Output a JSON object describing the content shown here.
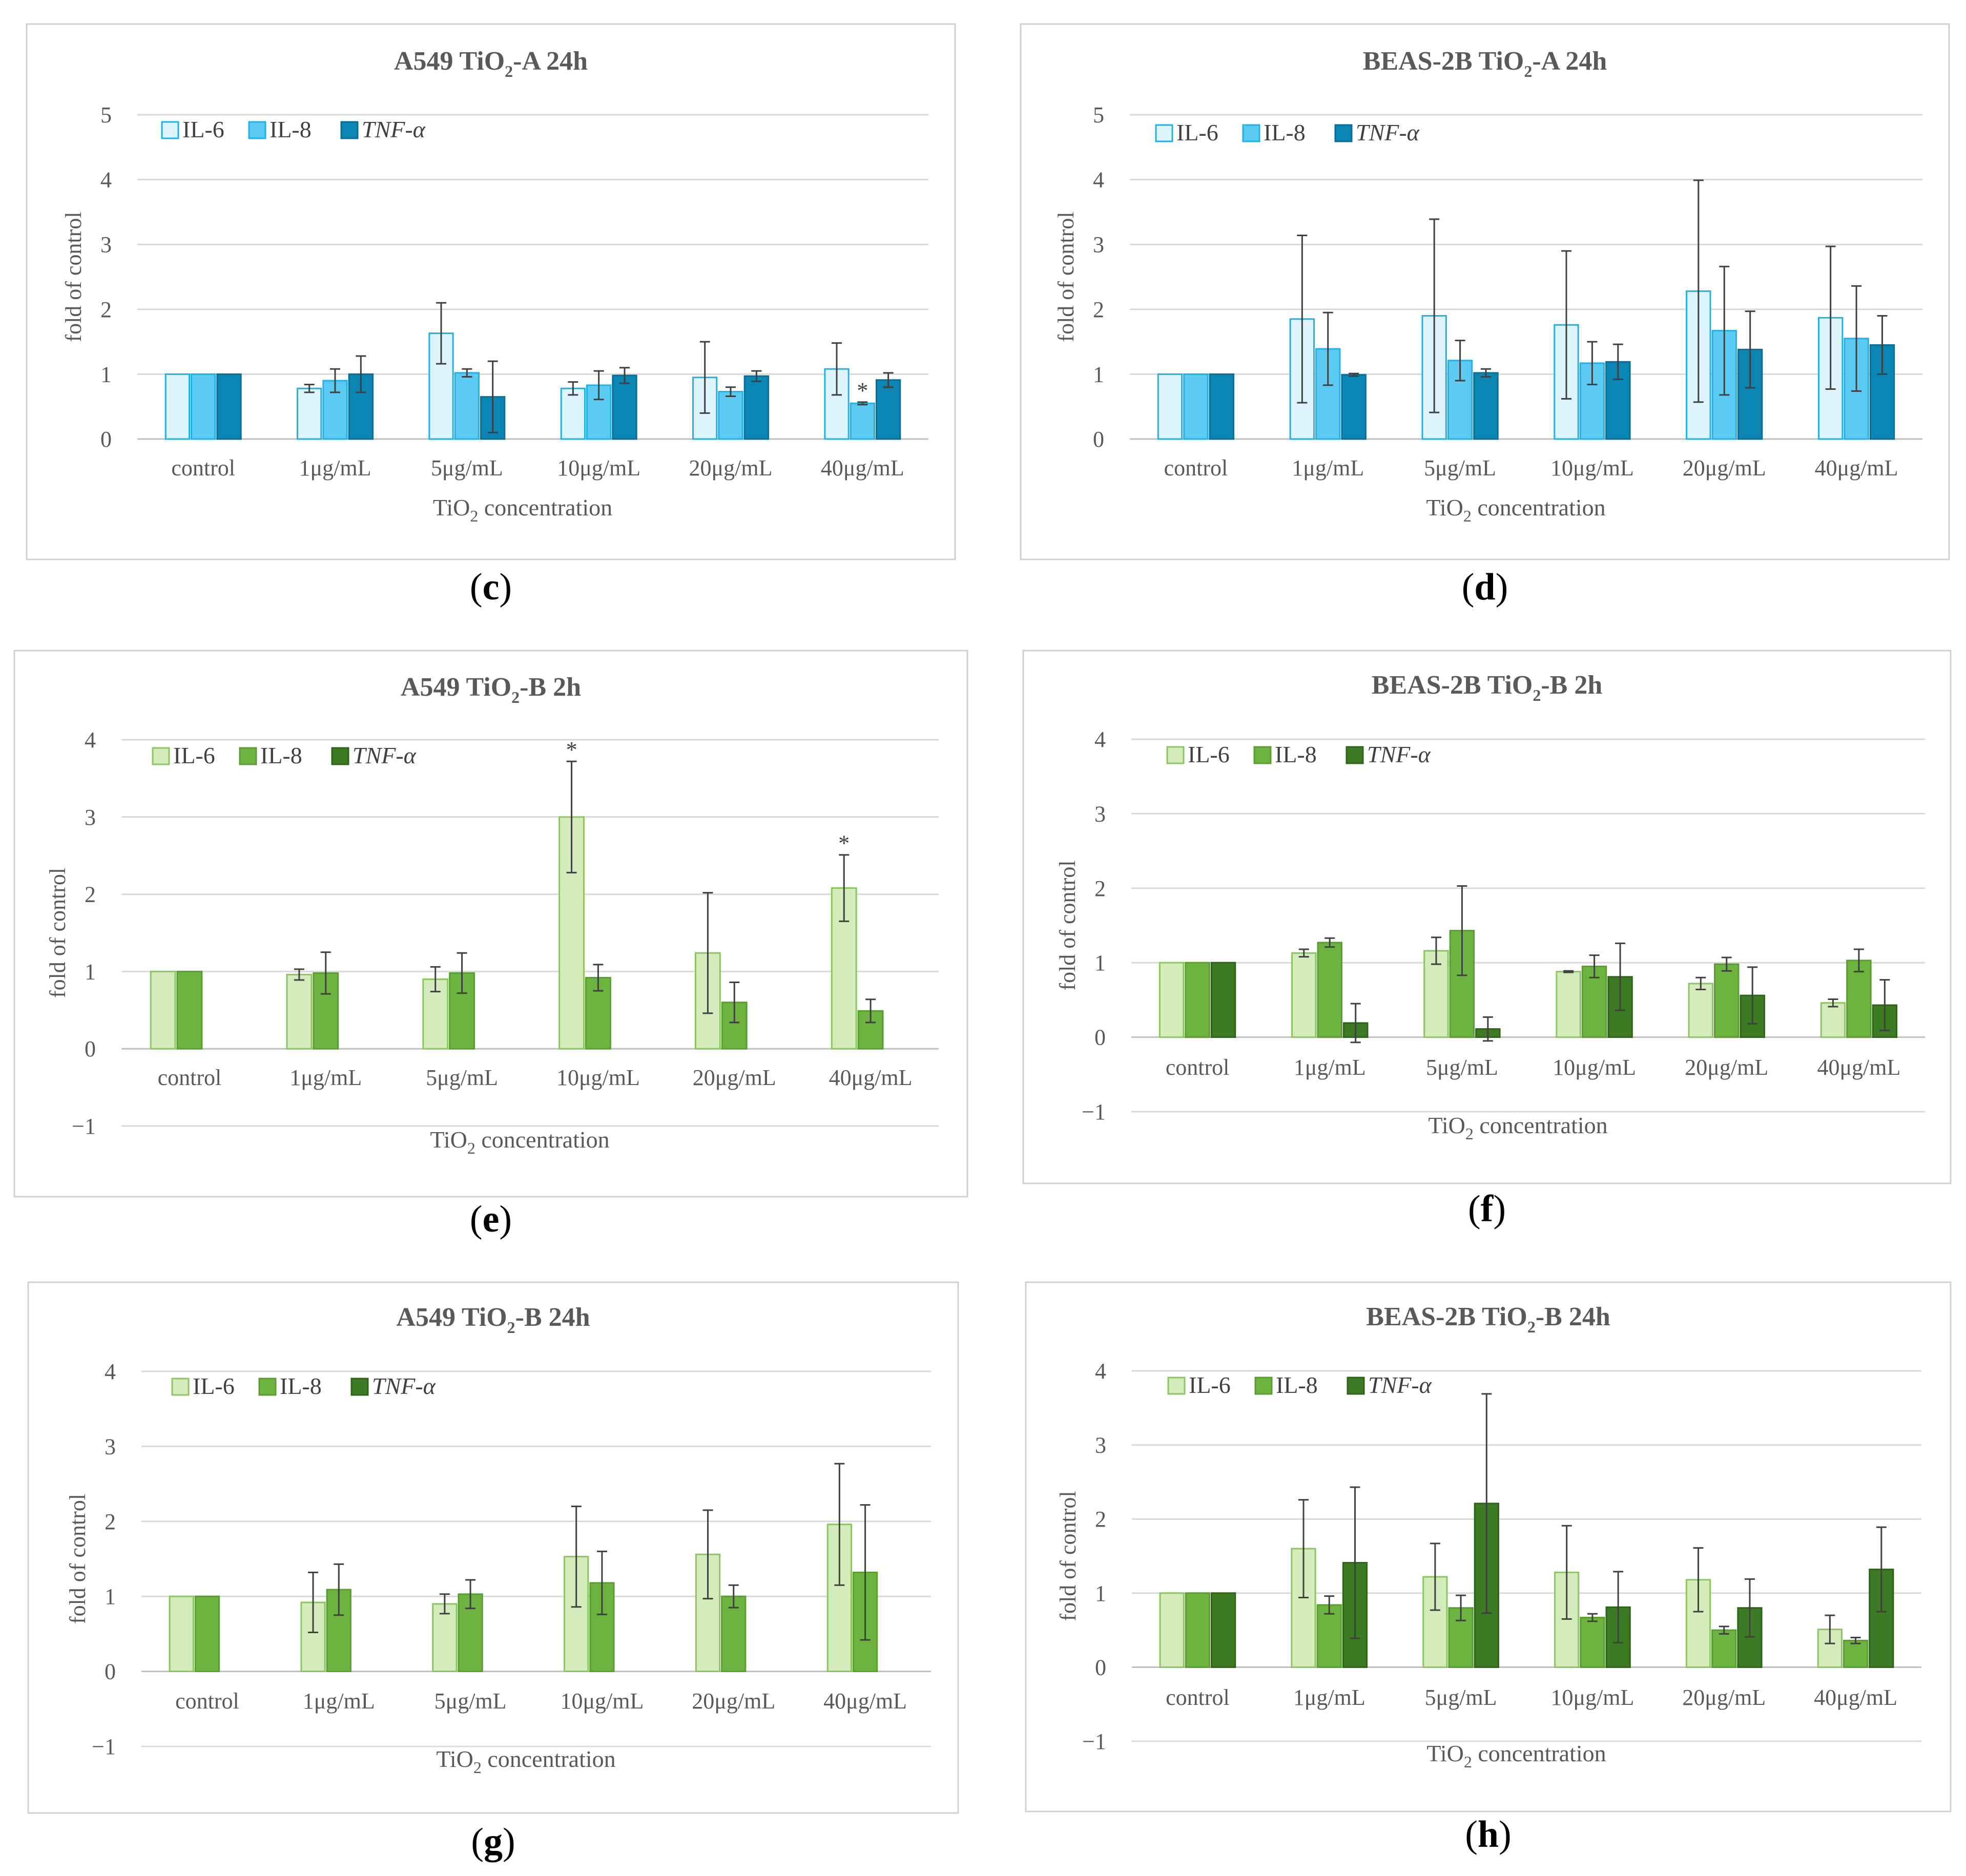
{
  "figure": {
    "legend_labels": [
      "IL-6",
      "IL-8",
      "TNF-α"
    ],
    "colors": {
      "blue": {
        "fills": [
          "#ddf4fc",
          "#5ccbf3",
          "#0b86b4"
        ],
        "strokes": [
          "#20b2e6",
          "#20b2e6",
          "#0a6f95"
        ]
      },
      "green": {
        "fills": [
          "#d4ebbc",
          "#6db33f",
          "#3d7a24"
        ],
        "strokes": [
          "#8cc661",
          "#5a9e33",
          "#2f6319"
        ]
      }
    }
  },
  "chart_data": [
    {
      "panel": "c",
      "type": "bar",
      "palette": "blue",
      "title_main": "A549 TiO",
      "title_sub": "2",
      "title_rest": "-A 24h",
      "ylabel": "fold of control",
      "xlabel_main": "TiO",
      "xlabel_sub": "2",
      "xlabel_rest": " concentration",
      "ylim": [
        0,
        5
      ],
      "ticks": [
        0,
        1,
        2,
        3,
        4,
        5
      ],
      "categories": [
        "control",
        "1μg/mL",
        "5μg/mL",
        "10μg/mL",
        "20μg/mL",
        "40μg/mL"
      ],
      "series": [
        {
          "name": "IL-6",
          "values": [
            1,
            0.78,
            1.63,
            0.78,
            0.95,
            1.08
          ],
          "errors": [
            0,
            0.06,
            0.47,
            0.1,
            0.55,
            0.4
          ]
        },
        {
          "name": "IL-8",
          "values": [
            1,
            0.9,
            1.02,
            0.83,
            0.73,
            0.55
          ],
          "errors": [
            0,
            0.18,
            0.06,
            0.22,
            0.07,
            0.02
          ]
        },
        {
          "name": "TNF-α",
          "values": [
            1,
            1.0,
            0.65,
            0.98,
            0.97,
            0.91
          ],
          "errors": [
            0,
            0.28,
            0.55,
            0.12,
            0.08,
            0.11
          ]
        }
      ],
      "stars": [
        {
          "category": 5,
          "series": 1,
          "label": "*"
        }
      ],
      "caption": "c"
    },
    {
      "panel": "d",
      "type": "bar",
      "palette": "blue",
      "title_main": "BEAS-2B TiO",
      "title_sub": "2",
      "title_rest": "-A 24h",
      "ylabel": "fold of control",
      "xlabel_main": "TiO",
      "xlabel_sub": "2",
      "xlabel_rest": " concentration",
      "ylim": [
        0,
        5
      ],
      "ticks": [
        0,
        1,
        2,
        3,
        4,
        5
      ],
      "categories": [
        "control",
        "1μg/mL",
        "5μg/mL",
        "10μg/mL",
        "20μg/mL",
        "40μg/mL"
      ],
      "series": [
        {
          "name": "IL-6",
          "values": [
            1,
            1.85,
            1.9,
            1.76,
            2.28,
            1.87
          ],
          "errors": [
            0,
            1.29,
            1.49,
            1.14,
            1.71,
            1.1
          ]
        },
        {
          "name": "IL-8",
          "values": [
            1,
            1.39,
            1.21,
            1.17,
            1.67,
            1.55
          ],
          "errors": [
            0,
            0.56,
            0.31,
            0.33,
            0.99,
            0.81
          ]
        },
        {
          "name": "TNF-α",
          "values": [
            1,
            0.99,
            1.02,
            1.19,
            1.38,
            1.45
          ],
          "errors": [
            0,
            0.02,
            0.06,
            0.27,
            0.59,
            0.45
          ]
        }
      ],
      "stars": [],
      "caption": "d"
    },
    {
      "panel": "e",
      "type": "bar",
      "palette": "green",
      "title_main": "A549 TiO",
      "title_sub": "2",
      "title_rest": "-B 2h",
      "ylabel": "fold of control",
      "xlabel_main": "TiO",
      "xlabel_sub": "2",
      "xlabel_rest": " concentration",
      "ylim": [
        -1,
        4
      ],
      "ticks": [
        -1,
        0,
        1,
        2,
        3,
        4
      ],
      "categories": [
        "control",
        "1μg/mL",
        "5μg/mL",
        "10μg/mL",
        "20μg/mL",
        "40μg/mL"
      ],
      "series": [
        {
          "name": "IL-6",
          "values": [
            1,
            0.96,
            0.9,
            3.0,
            1.24,
            2.08
          ],
          "errors": [
            0,
            0.07,
            0.16,
            0.72,
            0.78,
            0.43
          ]
        },
        {
          "name": "IL-8",
          "values": [
            1,
            0.98,
            0.98,
            0.92,
            0.6,
            0.49
          ],
          "errors": [
            0,
            0.27,
            0.26,
            0.17,
            0.26,
            0.15
          ]
        },
        {
          "name": "TNF-α",
          "values": [
            0,
            0,
            0,
            0,
            0,
            0
          ],
          "errors": [
            0,
            0,
            0,
            0,
            0,
            0
          ]
        }
      ],
      "stars": [
        {
          "category": 3,
          "series": 0,
          "label": "*"
        },
        {
          "category": 5,
          "series": 0,
          "label": "*"
        }
      ],
      "caption": "e"
    },
    {
      "panel": "f",
      "type": "bar",
      "palette": "green",
      "title_main": "BEAS-2B TiO",
      "title_sub": "2",
      "title_rest": "-B 2h",
      "ylabel": "fold of control",
      "xlabel_main": "TiO",
      "xlabel_sub": "2",
      "xlabel_rest": " concentration",
      "ylim": [
        -1,
        4
      ],
      "ticks": [
        -1,
        0,
        1,
        2,
        3,
        4
      ],
      "categories": [
        "control",
        "1μg/mL",
        "5μg/mL",
        "10μg/mL",
        "20μg/mL",
        "40μg/mL"
      ],
      "series": [
        {
          "name": "IL-6",
          "values": [
            1,
            1.13,
            1.16,
            0.88,
            0.72,
            0.46
          ],
          "errors": [
            0,
            0.05,
            0.18,
            0.01,
            0.08,
            0.05
          ]
        },
        {
          "name": "IL-8",
          "values": [
            1,
            1.27,
            1.43,
            0.95,
            0.98,
            1.03
          ],
          "errors": [
            0,
            0.06,
            0.6,
            0.15,
            0.09,
            0.15
          ]
        },
        {
          "name": "TNF-α",
          "values": [
            1,
            0.19,
            0.11,
            0.81,
            0.56,
            0.43
          ],
          "errors": [
            0,
            0.26,
            0.16,
            0.45,
            0.38,
            0.34
          ]
        }
      ],
      "stars": [],
      "caption": "f"
    },
    {
      "panel": "g",
      "type": "bar",
      "palette": "green",
      "title_main": "A549 TiO",
      "title_sub": "2",
      "title_rest": "-B 24h",
      "ylabel": "fold of control",
      "xlabel_main": "TiO",
      "xlabel_sub": "2",
      "xlabel_rest": " concentration",
      "ylim": [
        -1,
        4
      ],
      "ticks": [
        -1,
        0,
        1,
        2,
        3,
        4
      ],
      "categories": [
        "control",
        "1μg/mL",
        "5μg/mL",
        "10μg/mL",
        "20μg/mL",
        "40μg/mL"
      ],
      "series": [
        {
          "name": "IL-6",
          "values": [
            1,
            0.92,
            0.9,
            1.53,
            1.56,
            1.96
          ],
          "errors": [
            0,
            0.4,
            0.13,
            0.67,
            0.59,
            0.81
          ]
        },
        {
          "name": "IL-8",
          "values": [
            1,
            1.09,
            1.03,
            1.18,
            1.0,
            1.32
          ],
          "errors": [
            0,
            0.34,
            0.19,
            0.42,
            0.15,
            0.9
          ]
        },
        {
          "name": "TNF-α",
          "values": [
            0,
            0,
            0,
            0,
            0,
            0
          ],
          "errors": [
            0,
            0,
            0,
            0,
            0,
            0
          ]
        }
      ],
      "stars": [],
      "caption": "g"
    },
    {
      "panel": "h",
      "type": "bar",
      "palette": "green",
      "title_main": "BEAS-2B TiO",
      "title_sub": "2",
      "title_rest": "-B 24h",
      "ylabel": "fold of control",
      "xlabel_main": "TiO",
      "xlabel_sub": "2",
      "xlabel_rest": " concentration",
      "ylim": [
        -1,
        4
      ],
      "ticks": [
        -1,
        0,
        1,
        2,
        3,
        4
      ],
      "categories": [
        "control",
        "1μg/mL",
        "5μg/mL",
        "10μg/mL",
        "20μg/mL",
        "40μg/mL"
      ],
      "series": [
        {
          "name": "IL-6",
          "values": [
            1,
            1.6,
            1.22,
            1.28,
            1.18,
            0.51
          ],
          "errors": [
            0,
            0.66,
            0.45,
            0.63,
            0.43,
            0.19
          ]
        },
        {
          "name": "IL-8",
          "values": [
            1,
            0.84,
            0.8,
            0.67,
            0.5,
            0.36
          ],
          "errors": [
            0,
            0.12,
            0.17,
            0.05,
            0.05,
            0.04
          ]
        },
        {
          "name": "TNF-α",
          "values": [
            1,
            1.41,
            2.21,
            0.81,
            0.8,
            1.32
          ],
          "errors": [
            0,
            1.02,
            1.48,
            0.48,
            0.39,
            0.57
          ]
        }
      ],
      "stars": [],
      "caption": "h"
    }
  ]
}
